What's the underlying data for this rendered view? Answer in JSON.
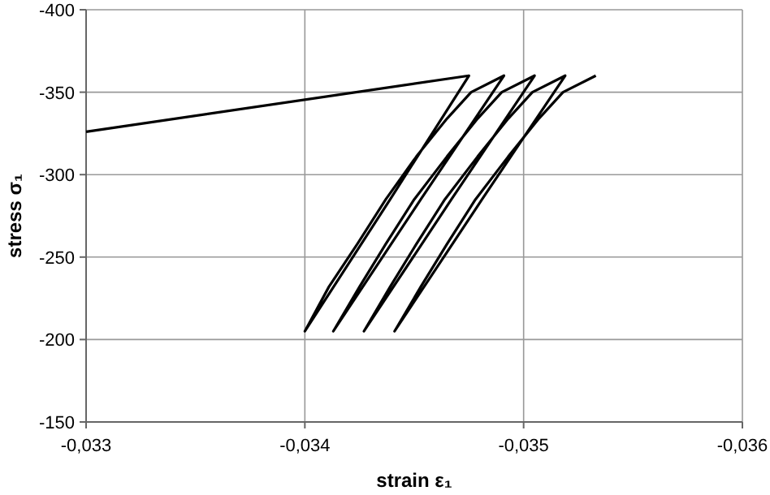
{
  "chart_data": {
    "type": "line",
    "xlabel": "strain ε₁",
    "ylabel": "stress σ₁",
    "xlim": [
      -0.033,
      -0.036
    ],
    "ylim": [
      -150,
      -400
    ],
    "xticks": [
      {
        "value": -0.033,
        "label": "-0,033"
      },
      {
        "value": -0.034,
        "label": "-0,034"
      },
      {
        "value": -0.035,
        "label": "-0,035"
      },
      {
        "value": -0.036,
        "label": "-0,036"
      }
    ],
    "yticks": [
      -400,
      -350,
      -300,
      -250,
      -200,
      -150
    ],
    "grid": true,
    "marker": "none",
    "line_style": "solid",
    "series": [
      {
        "color": "#000000",
        "x": [
          -0.033,
          -0.03475,
          -0.03439,
          -0.034,
          -0.03411,
          -0.03424,
          -0.03437,
          -0.03451,
          -0.03465,
          -0.03476,
          -0.03491,
          -0.03453,
          -0.03413,
          -0.03425,
          -0.03437,
          -0.0345,
          -0.03465,
          -0.03479,
          -0.0349,
          -0.03505,
          -0.03467,
          -0.03427,
          -0.03439,
          -0.03451,
          -0.03464,
          -0.03479,
          -0.03493,
          -0.03504,
          -0.03519,
          -0.03481,
          -0.03441,
          -0.03453,
          -0.03465,
          -0.03478,
          -0.03493,
          -0.03507,
          -0.03518,
          -0.03533
        ],
        "values": [
          -326,
          -360,
          -285,
          -205,
          -232,
          -258,
          -285,
          -311,
          -334,
          -350,
          -360,
          -285,
          -205,
          -232,
          -258,
          -285,
          -311,
          -334,
          -350,
          -360,
          -285,
          -205,
          -232,
          -258,
          -285,
          -311,
          -334,
          -350,
          -360,
          -285,
          -205,
          -232,
          -258,
          -285,
          -311,
          -334,
          -350,
          -360
        ]
      }
    ]
  }
}
